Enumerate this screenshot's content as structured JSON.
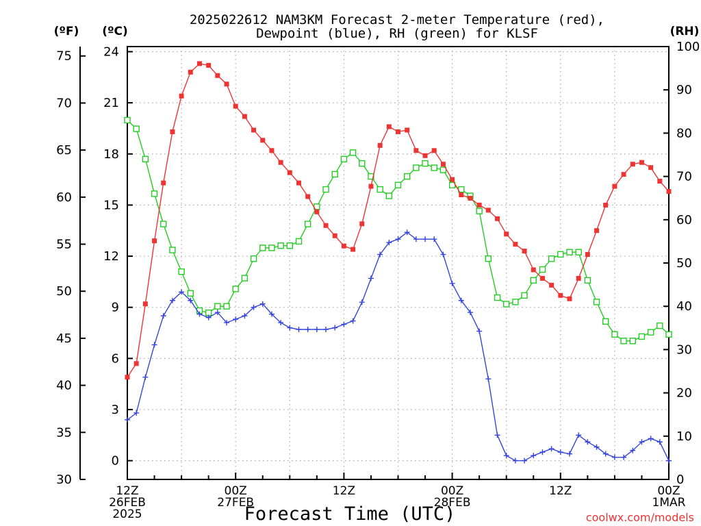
{
  "chart_data": {
    "type": "line",
    "title_line1": "2025022612 NAM3KM Forecast 2-meter Temperature (red),",
    "title_line2": "Dewpoint (blue), RH (green) for KLSF",
    "xlabel": "Forecast Time (UTC)",
    "left_unit_f": "(ºF)",
    "left_unit_c": "(ºC)",
    "right_unit": "(RH)",
    "watermark": "coolwx.com/models",
    "grid": true,
    "x_hours_range": [
      0,
      60
    ],
    "x_ticks": [
      {
        "hour": 0,
        "lines": [
          "12Z",
          "26FEB",
          "2025"
        ]
      },
      {
        "hour": 12,
        "lines": [
          "00Z",
          "27FEB"
        ]
      },
      {
        "hour": 24,
        "lines": [
          "12Z"
        ]
      },
      {
        "hour": 36,
        "lines": [
          "00Z",
          "28FEB"
        ]
      },
      {
        "hour": 48,
        "lines": [
          "12Z"
        ]
      },
      {
        "hour": 60,
        "lines": [
          "00Z",
          "1MAR"
        ]
      }
    ],
    "axis_c": {
      "range": [
        -1.1,
        24.3
      ],
      "ticks": [
        0,
        3,
        6,
        9,
        12,
        15,
        18,
        21,
        24
      ]
    },
    "axis_f": {
      "range": [
        30,
        76
      ],
      "ticks": [
        30,
        35,
        40,
        45,
        50,
        55,
        60,
        65,
        70,
        75
      ]
    },
    "axis_rh": {
      "range": [
        0,
        100
      ],
      "ticks": [
        0,
        10,
        20,
        30,
        40,
        50,
        60,
        70,
        80,
        90,
        100
      ]
    },
    "series": [
      {
        "name": "Temperature",
        "axis": "c",
        "color": "#ee3333",
        "marker": "filled-square",
        "values": [
          4.9,
          5.7,
          9.2,
          12.9,
          16.3,
          19.3,
          21.4,
          22.8,
          23.3,
          23.2,
          22.6,
          22.1,
          20.8,
          20.2,
          19.4,
          18.8,
          18.2,
          17.5,
          16.9,
          16.3,
          15.5,
          14.6,
          13.8,
          13.2,
          12.6,
          12.4,
          13.9,
          16.1,
          18.5,
          19.6,
          19.3,
          19.4,
          18.2,
          17.9,
          18.2,
          17.4,
          16.5,
          15.6,
          15.4,
          15.0,
          14.7,
          14.2,
          13.3,
          12.7,
          12.3,
          11.2,
          10.7,
          10.3,
          9.7,
          9.5,
          10.7,
          12.1,
          13.5,
          15.0,
          16.1,
          16.8,
          17.4,
          17.5,
          17.2,
          16.4,
          15.8
        ]
      },
      {
        "name": "Dewpoint",
        "axis": "c",
        "color": "#3344dd",
        "marker": "plus",
        "values": [
          2.4,
          2.8,
          4.9,
          6.8,
          8.5,
          9.4,
          9.9,
          9.4,
          8.6,
          8.4,
          8.7,
          8.1,
          8.3,
          8.5,
          9.0,
          9.2,
          8.6,
          8.1,
          7.8,
          7.7,
          7.7,
          7.7,
          7.7,
          7.8,
          8.0,
          8.2,
          9.3,
          10.7,
          12.1,
          12.8,
          13.0,
          13.4,
          13.0,
          13.0,
          13.0,
          12.1,
          10.4,
          9.4,
          8.7,
          7.6,
          4.8,
          1.5,
          0.3,
          0.0,
          0.0,
          0.3,
          0.5,
          0.7,
          0.5,
          0.4,
          1.5,
          1.1,
          0.8,
          0.4,
          0.2,
          0.2,
          0.6,
          1.1,
          1.3,
          1.1,
          0.0
        ]
      },
      {
        "name": "RH",
        "axis": "rh",
        "color": "#22cc22",
        "marker": "open-square",
        "values": [
          83,
          81,
          74,
          66,
          59,
          53,
          48,
          43,
          39,
          38.5,
          40,
          40,
          44,
          46.5,
          51,
          53.5,
          53.5,
          54,
          54,
          55,
          59,
          63,
          67,
          70.5,
          74,
          75.5,
          73,
          70,
          67,
          65.5,
          68,
          70,
          72,
          73,
          72,
          71.5,
          68,
          67,
          65.5,
          62,
          51,
          42,
          40.5,
          41,
          42.5,
          46,
          48.5,
          51,
          52,
          52.5,
          52.5,
          46,
          41,
          36.5,
          33.5,
          32,
          32,
          33,
          34,
          35.5,
          33.5
        ]
      }
    ]
  }
}
